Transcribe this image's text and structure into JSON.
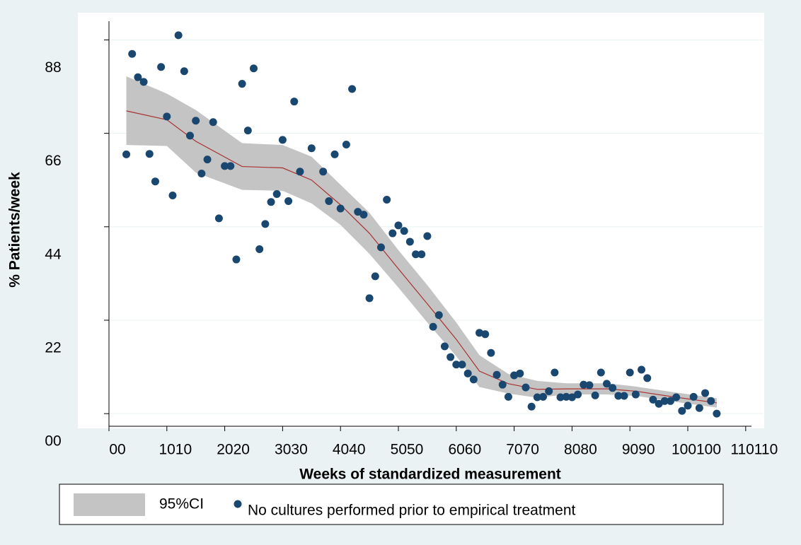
{
  "chart_data": {
    "type": "scatter",
    "x_label": "Weeks of standardized measurement",
    "y_label": "% Patients/week",
    "xlim": [
      0,
      111
    ],
    "ylim": [
      -2.7,
      84
    ],
    "xticks": [
      {
        "value": 0,
        "label": "00"
      },
      {
        "value": 10,
        "label": "1010"
      },
      {
        "value": 20,
        "label": "2020"
      },
      {
        "value": 30,
        "label": "3030"
      },
      {
        "value": 40,
        "label": "4040"
      },
      {
        "value": 50,
        "label": "5050"
      },
      {
        "value": 60,
        "label": "6060"
      },
      {
        "value": 70,
        "label": "7070"
      },
      {
        "value": 80,
        "label": "8080"
      },
      {
        "value": 90,
        "label": "9090"
      },
      {
        "value": 100,
        "label": "100100"
      },
      {
        "value": 110,
        "label": "110110"
      }
    ],
    "yticks": [
      {
        "value": 0,
        "label": "00"
      },
      {
        "value": 20,
        "label": "22"
      },
      {
        "value": 40,
        "label": "44"
      },
      {
        "value": 60,
        "label": "66"
      },
      {
        "value": 80,
        "label": "88"
      }
    ],
    "grid": true,
    "band": {
      "name": "95%CI",
      "color": "#c4c4c4",
      "x": [
        3,
        10,
        15,
        23,
        30,
        35,
        40,
        45,
        50,
        55,
        60,
        64,
        69,
        74,
        79,
        86,
        91,
        98,
        105
      ],
      "upper": [
        72.2,
        68.5,
        65,
        57.9,
        57.5,
        55,
        49,
        43,
        35,
        27.5,
        19.5,
        12.5,
        8.5,
        7,
        6.5,
        6.5,
        5.8,
        4.5,
        3.3
      ],
      "lower": [
        57.5,
        57.3,
        51.6,
        47.9,
        47.7,
        45,
        40.4,
        34.2,
        27,
        19.5,
        12.3,
        5.7,
        4.3,
        3.4,
        4.1,
        4.1,
        3.8,
        2.5,
        1.3
      ]
    },
    "fit": {
      "color": "#a83232",
      "x": [
        3,
        10,
        15,
        23,
        30,
        35,
        40,
        45,
        50,
        55,
        60,
        64,
        69,
        74,
        79,
        86,
        91,
        98,
        105
      ],
      "values": [
        64.8,
        62.9,
        58.3,
        52.9,
        52.6,
        50,
        44.7,
        38.6,
        31,
        23.5,
        15.9,
        9.1,
        6.4,
        5.2,
        5.3,
        5.3,
        4.8,
        3.5,
        2.3
      ]
    },
    "series": [
      {
        "name": "No cultures performed prior to empirical treatment",
        "color": "#1a476f",
        "x": [
          3,
          4,
          5,
          6,
          7,
          8,
          9,
          10,
          11,
          12,
          13,
          14,
          15,
          16,
          17,
          18,
          19,
          20,
          21,
          22,
          23,
          24,
          25,
          26,
          27,
          28,
          29,
          30,
          31,
          32,
          33,
          35,
          37,
          38,
          39,
          40,
          41,
          42,
          43,
          44,
          45,
          46,
          47,
          48,
          49,
          50,
          51,
          52,
          53,
          54,
          55,
          56,
          57,
          58,
          59,
          60,
          61,
          62,
          63,
          64,
          65,
          66,
          67,
          68,
          69,
          70,
          71,
          72,
          73,
          74,
          75,
          76,
          77,
          78,
          79,
          80,
          81,
          82,
          83,
          84,
          85,
          86,
          87,
          88,
          89,
          90,
          91,
          92,
          93,
          94,
          95,
          96,
          97,
          98,
          99,
          100,
          101,
          102,
          103,
          104,
          105
        ],
        "values": [
          55.5,
          77,
          72,
          71,
          55.6,
          49.7,
          74.2,
          63.6,
          46.7,
          81,
          73.3,
          59.5,
          62.7,
          51.4,
          54.4,
          62.4,
          41.8,
          53,
          53,
          33,
          70.6,
          60.6,
          73.9,
          35.2,
          40.6,
          45.3,
          47,
          58.6,
          45.5,
          66.8,
          51.8,
          56.8,
          51.8,
          45.5,
          55.5,
          43.9,
          57.6,
          69.5,
          43.2,
          42.6,
          24.7,
          29.4,
          35.6,
          45.8,
          38.6,
          40.3,
          39.1,
          36.8,
          34.1,
          34.1,
          38,
          18.6,
          21.1,
          14.4,
          12.1,
          10.5,
          10.5,
          8.6,
          7.3,
          17.3,
          17,
          13,
          8.3,
          6.2,
          3.6,
          8.2,
          8.6,
          5.6,
          1.5,
          3.5,
          3.6,
          4.8,
          8.8,
          3.5,
          3.6,
          3.5,
          4.1,
          6.2,
          6.1,
          3.9,
          8.8,
          6.4,
          5.5,
          3.8,
          3.8,
          8.8,
          4.1,
          9.4,
          7.6,
          3,
          2.1,
          2.7,
          2.7,
          3.5,
          0.6,
          1.7,
          3.6,
          1.2,
          4.4,
          2.7,
          0
        ]
      }
    ]
  }
}
